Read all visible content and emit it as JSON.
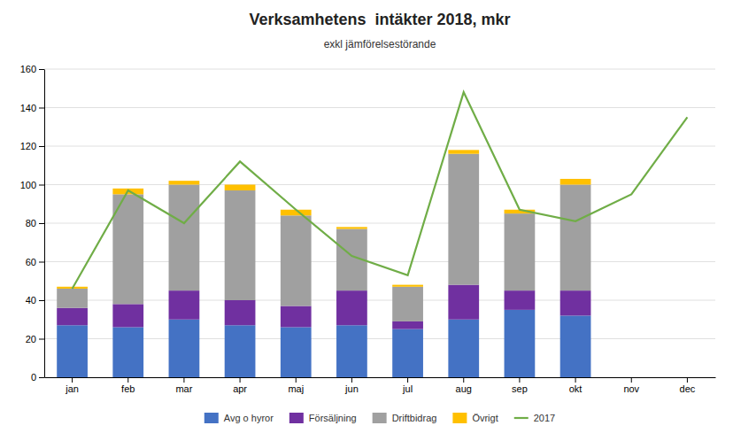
{
  "chart_data": {
    "type": "bar",
    "stacked": true,
    "title": "Verksamhetens  intäkter 2018, mkr",
    "subtitle": "exkl jämförelsestörande",
    "categories": [
      "jan",
      "feb",
      "mar",
      "apr",
      "maj",
      "jun",
      "jul",
      "aug",
      "sep",
      "okt",
      "nov",
      "dec"
    ],
    "series": [
      {
        "name": "Avg o hyror",
        "color": "#4472C4",
        "values": [
          27,
          26,
          30,
          27,
          26,
          27,
          25,
          30,
          35,
          32,
          0,
          0
        ]
      },
      {
        "name": "Försäljning",
        "color": "#7030A0",
        "values": [
          9,
          12,
          15,
          13,
          11,
          18,
          4,
          18,
          10,
          13,
          0,
          0
        ]
      },
      {
        "name": "Driftbidrag",
        "color": "#A0A0A0",
        "values": [
          10,
          57,
          55,
          57,
          47,
          32,
          18,
          68,
          40,
          55,
          0,
          0
        ]
      },
      {
        "name": "Övrigt",
        "color": "#FFC000",
        "values": [
          1,
          3,
          2,
          3,
          3,
          1,
          1,
          2,
          2,
          3,
          0,
          0
        ]
      },
      {
        "name": "2017",
        "type": "line",
        "color": "#70AD47",
        "values": [
          46,
          97,
          80,
          112,
          87,
          63,
          53,
          148,
          87,
          81,
          95,
          135
        ]
      }
    ],
    "ylim": [
      0,
      160
    ],
    "yticks": [
      0,
      20,
      40,
      60,
      80,
      100,
      120,
      140,
      160
    ],
    "grid": true,
    "legend": "bottom"
  }
}
